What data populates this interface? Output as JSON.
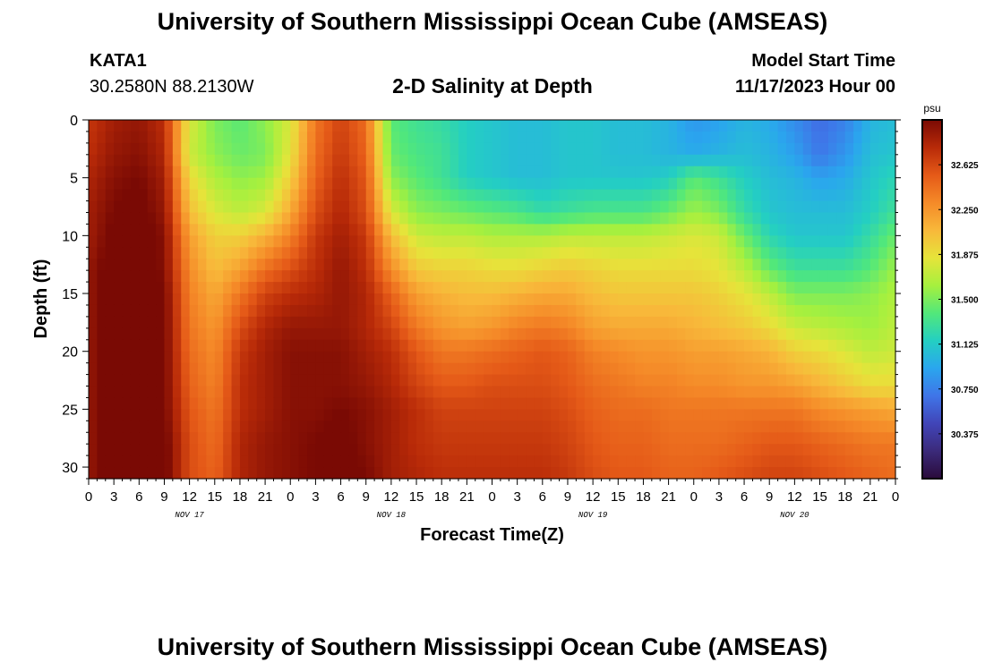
{
  "header": {
    "title": "University of Southern Mississippi Ocean Cube (AMSEAS)",
    "station": "KATA1",
    "coords": "30.2580N  88.2130W",
    "plot_title": "2-D Salinity at Depth",
    "model_label": "Model Start Time",
    "model_time": "11/17/2023 Hour 00"
  },
  "footer": {
    "title": "University of Southern Mississippi Ocean Cube (AMSEAS)"
  },
  "chart_data": {
    "type": "heatmap",
    "title": "2-D Salinity at Depth",
    "xlabel": "Forecast Time(Z)",
    "ylabel": "Depth (ft)",
    "x_range": [
      0,
      96
    ],
    "y_range": [
      0,
      31
    ],
    "x_ticks": [
      0,
      3,
      6,
      9,
      12,
      15,
      18,
      21,
      24,
      27,
      30,
      33,
      36,
      39,
      42,
      45,
      48,
      51,
      54,
      57,
      60,
      63,
      66,
      69,
      72,
      75,
      78,
      81,
      84,
      87,
      90,
      93,
      96
    ],
    "x_tick_labels": [
      "0",
      "3",
      "6",
      "9",
      "12",
      "15",
      "18",
      "21",
      "0",
      "3",
      "6",
      "9",
      "12",
      "15",
      "18",
      "21",
      "0",
      "3",
      "6",
      "9",
      "12",
      "15",
      "18",
      "21",
      "0",
      "3",
      "6",
      "9",
      "12",
      "15",
      "18",
      "21",
      "0"
    ],
    "day_labels": [
      {
        "text": "NOV 17",
        "hour": 12
      },
      {
        "text": "NOV 18",
        "hour": 36
      },
      {
        "text": "NOV 19",
        "hour": 60
      },
      {
        "text": "NOV 20",
        "hour": 84
      }
    ],
    "y_ticks": [
      0,
      5,
      10,
      15,
      20,
      25,
      30
    ],
    "y_tick_labels": [
      "0",
      "5",
      "10",
      "15",
      "20",
      "25",
      "30"
    ],
    "colorbar": {
      "unit": "psu",
      "min": 30.0,
      "max": 33.0,
      "ticks": [
        32.625,
        32.25,
        31.875,
        31.5,
        31.125,
        30.75,
        30.375
      ],
      "tick_labels": [
        "32.625",
        "32.250",
        "31.875",
        "31.500",
        "31.125",
        "30.750",
        "30.375"
      ],
      "colors": [
        "#2a0b3a",
        "#3b2a7a",
        "#4145b8",
        "#3f75e8",
        "#2aa6ee",
        "#24cfc2",
        "#52e87a",
        "#a6f03e",
        "#e6e43a",
        "#f8b83a",
        "#f58a28",
        "#e55a18",
        "#b82a08",
        "#7a0a04"
      ]
    },
    "depths": [
      0,
      3,
      5,
      8,
      10,
      13,
      15,
      18,
      20,
      23,
      25,
      28,
      31
    ],
    "times": [
      0,
      3,
      6,
      9,
      12,
      15,
      18,
      21,
      24,
      27,
      30,
      33,
      36,
      39,
      42,
      45,
      48,
      51,
      54,
      57,
      60,
      63,
      66,
      69,
      72,
      75,
      78,
      81,
      84,
      87,
      90,
      93,
      96
    ],
    "salinity": [
      [
        32.7,
        32.85,
        32.9,
        32.75,
        31.8,
        31.5,
        31.4,
        31.55,
        31.8,
        32.4,
        32.65,
        32.45,
        31.4,
        31.3,
        31.25,
        31.15,
        31.1,
        31.05,
        31.05,
        31.1,
        31.1,
        31.05,
        31.05,
        31.0,
        30.85,
        30.9,
        31.0,
        30.95,
        30.8,
        30.65,
        30.75,
        31.0,
        31.05
      ],
      [
        32.75,
        32.9,
        32.95,
        32.8,
        31.75,
        31.55,
        31.45,
        31.5,
        31.85,
        32.45,
        32.7,
        32.5,
        31.45,
        31.35,
        31.3,
        31.15,
        31.1,
        31.05,
        31.05,
        31.1,
        31.1,
        31.05,
        31.05,
        31.0,
        30.95,
        31.0,
        31.05,
        31.0,
        30.9,
        30.7,
        30.85,
        31.05,
        31.1
      ],
      [
        32.8,
        32.95,
        33.0,
        32.85,
        31.9,
        31.65,
        31.55,
        31.6,
        31.95,
        32.5,
        32.75,
        32.55,
        31.55,
        31.4,
        31.3,
        31.15,
        31.1,
        31.05,
        31.05,
        31.1,
        31.1,
        31.1,
        31.1,
        31.15,
        31.4,
        31.3,
        31.15,
        31.05,
        31.0,
        30.9,
        30.95,
        31.1,
        31.2
      ],
      [
        32.85,
        33.0,
        33.05,
        32.9,
        32.05,
        31.8,
        31.7,
        31.8,
        32.15,
        32.6,
        32.8,
        32.6,
        31.8,
        31.55,
        31.5,
        31.45,
        31.4,
        31.35,
        31.25,
        31.3,
        31.35,
        31.35,
        31.35,
        31.45,
        31.6,
        31.5,
        31.25,
        31.1,
        31.05,
        31.05,
        31.05,
        31.15,
        31.3
      ],
      [
        32.85,
        33.05,
        33.1,
        32.95,
        32.2,
        31.95,
        31.95,
        32.1,
        32.35,
        32.7,
        32.85,
        32.7,
        32.05,
        31.75,
        31.7,
        31.7,
        31.65,
        31.65,
        31.65,
        31.7,
        31.7,
        31.7,
        31.7,
        31.75,
        31.8,
        31.75,
        31.45,
        31.2,
        31.1,
        31.1,
        31.1,
        31.25,
        31.45
      ],
      [
        32.9,
        33.1,
        33.15,
        32.95,
        32.3,
        32.05,
        32.2,
        32.45,
        32.6,
        32.75,
        32.9,
        32.75,
        32.3,
        32.0,
        31.95,
        31.95,
        31.9,
        31.9,
        31.95,
        32.0,
        31.95,
        31.9,
        31.9,
        31.9,
        31.9,
        31.85,
        31.7,
        31.45,
        31.3,
        31.3,
        31.3,
        31.4,
        31.6
      ],
      [
        32.9,
        33.1,
        33.15,
        33.0,
        32.35,
        32.15,
        32.4,
        32.65,
        32.75,
        32.8,
        32.9,
        32.8,
        32.5,
        32.2,
        32.1,
        32.05,
        32.05,
        32.1,
        32.15,
        32.15,
        32.05,
        32.0,
        32.0,
        32.0,
        32.0,
        31.95,
        31.85,
        31.7,
        31.5,
        31.5,
        31.5,
        31.55,
        31.65
      ],
      [
        32.9,
        33.1,
        33.15,
        33.0,
        32.4,
        32.25,
        32.6,
        32.8,
        32.9,
        32.9,
        32.9,
        32.8,
        32.65,
        32.4,
        32.25,
        32.2,
        32.25,
        32.35,
        32.4,
        32.35,
        32.2,
        32.15,
        32.15,
        32.15,
        32.1,
        32.05,
        32.0,
        31.9,
        31.75,
        31.7,
        31.65,
        31.6,
        31.7
      ],
      [
        32.9,
        33.1,
        33.15,
        33.0,
        32.45,
        32.3,
        32.7,
        32.85,
        32.95,
        32.95,
        32.95,
        32.85,
        32.75,
        32.55,
        32.4,
        32.4,
        32.45,
        32.5,
        32.55,
        32.5,
        32.35,
        32.3,
        32.25,
        32.25,
        32.2,
        32.2,
        32.15,
        32.1,
        31.95,
        31.9,
        31.8,
        31.7,
        31.75
      ],
      [
        32.9,
        33.1,
        33.15,
        33.0,
        32.5,
        32.35,
        32.75,
        32.85,
        32.95,
        32.95,
        32.95,
        32.9,
        32.8,
        32.65,
        32.55,
        32.55,
        32.6,
        32.6,
        32.6,
        32.55,
        32.45,
        32.4,
        32.35,
        32.35,
        32.3,
        32.3,
        32.25,
        32.25,
        32.2,
        32.1,
        32.0,
        31.9,
        31.9
      ],
      [
        32.9,
        33.1,
        33.15,
        33.0,
        32.55,
        32.4,
        32.75,
        32.85,
        32.95,
        32.95,
        33.0,
        32.95,
        32.85,
        32.75,
        32.65,
        32.65,
        32.65,
        32.65,
        32.65,
        32.6,
        32.5,
        32.45,
        32.45,
        32.4,
        32.4,
        32.4,
        32.4,
        32.4,
        32.4,
        32.3,
        32.25,
        32.2,
        32.15
      ],
      [
        32.9,
        33.1,
        33.15,
        33.05,
        32.6,
        32.45,
        32.8,
        32.9,
        32.95,
        33.0,
        33.05,
        32.95,
        32.85,
        32.75,
        32.7,
        32.7,
        32.7,
        32.7,
        32.7,
        32.65,
        32.55,
        32.5,
        32.5,
        32.45,
        32.45,
        32.45,
        32.5,
        32.55,
        32.55,
        32.5,
        32.45,
        32.4,
        32.4
      ],
      [
        32.9,
        33.1,
        33.15,
        33.05,
        32.6,
        32.5,
        32.8,
        32.9,
        32.95,
        33.0,
        33.05,
        33.0,
        32.85,
        32.8,
        32.75,
        32.75,
        32.75,
        32.75,
        32.75,
        32.7,
        32.6,
        32.55,
        32.55,
        32.5,
        32.5,
        32.55,
        32.6,
        32.65,
        32.65,
        32.6,
        32.55,
        32.5,
        32.45
      ]
    ]
  }
}
